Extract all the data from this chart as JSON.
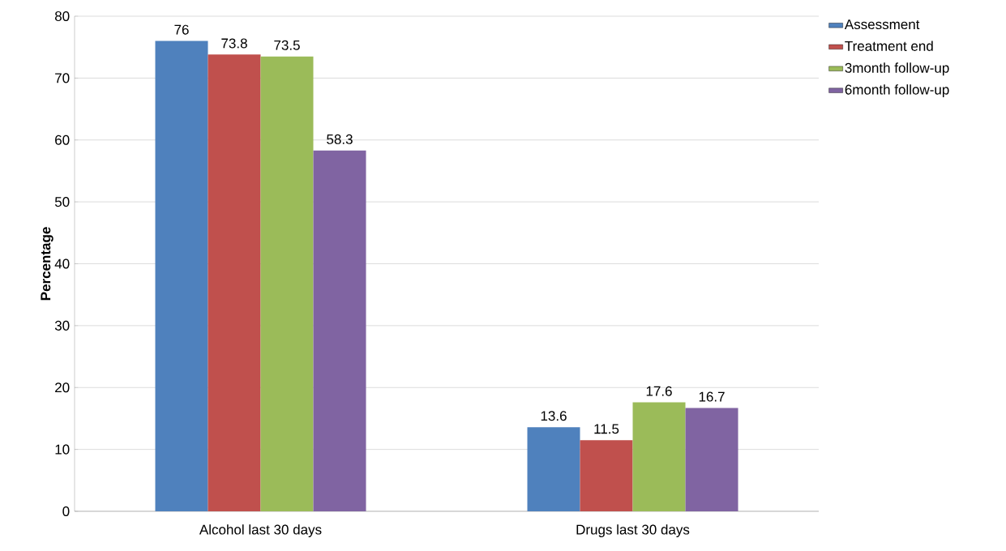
{
  "chart_data": {
    "type": "bar",
    "ylabel": "Percentage",
    "categories": [
      "Alcohol last 30 days",
      "Drugs last 30 days"
    ],
    "series": [
      {
        "name": "Assessment",
        "color": "#4f81bd",
        "values": [
          76,
          13.6
        ]
      },
      {
        "name": "Treatment end",
        "color": "#c0504d",
        "values": [
          73.8,
          11.5
        ]
      },
      {
        "name": "3month follow-up",
        "color": "#9bbb59",
        "values": [
          73.5,
          17.6
        ]
      },
      {
        "name": "6month follow-up",
        "color": "#8064a2",
        "values": [
          58.3,
          16.7
        ]
      }
    ],
    "ylim": [
      0,
      80
    ],
    "yticks": [
      0,
      10,
      20,
      30,
      40,
      50,
      60,
      70,
      80
    ],
    "grid": "y",
    "legend": "top right",
    "data_labels": true
  }
}
